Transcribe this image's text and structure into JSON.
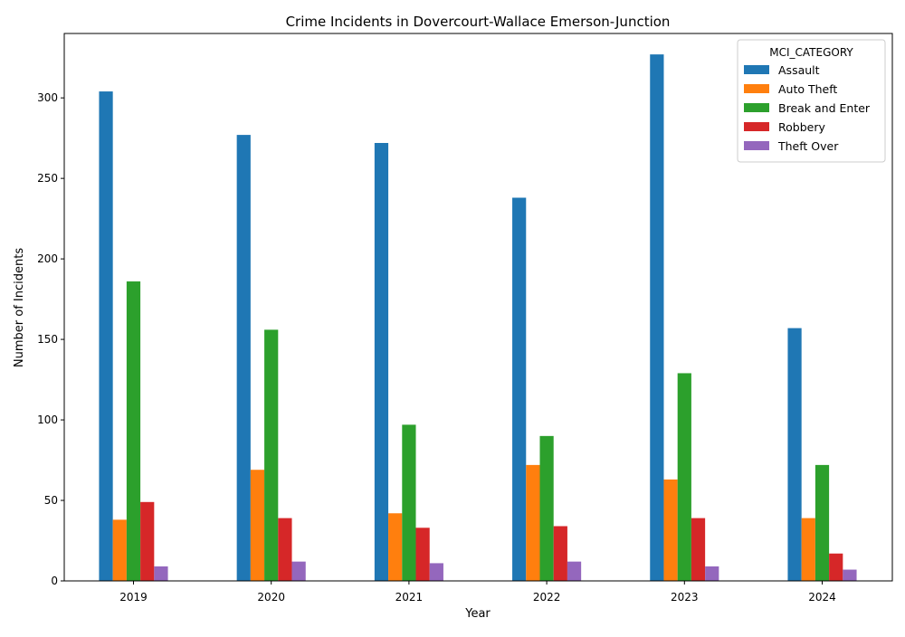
{
  "chart_data": {
    "type": "bar",
    "title": "Crime Incidents in Dovercourt-Wallace Emerson-Junction",
    "xlabel": "Year",
    "ylabel": "Number of Incidents",
    "categories": [
      "2019",
      "2020",
      "2021",
      "2022",
      "2023",
      "2024"
    ],
    "ylim": [
      0,
      340
    ],
    "yticks": [
      0,
      50,
      100,
      150,
      200,
      250,
      300
    ],
    "grid": false,
    "legend": {
      "title": "MCI_CATEGORY",
      "placement": "top-right"
    },
    "series": [
      {
        "name": "Assault",
        "color": "#1f77b4",
        "values": [
          304,
          277,
          272,
          238,
          327,
          157
        ]
      },
      {
        "name": "Auto Theft",
        "color": "#ff7f0e",
        "values": [
          38,
          69,
          42,
          72,
          63,
          39
        ]
      },
      {
        "name": "Break and Enter",
        "color": "#2ca02c",
        "values": [
          186,
          156,
          97,
          90,
          129,
          72
        ]
      },
      {
        "name": "Robbery",
        "color": "#d62728",
        "values": [
          49,
          39,
          33,
          34,
          39,
          17
        ]
      },
      {
        "name": "Theft Over",
        "color": "#9467bd",
        "values": [
          9,
          12,
          11,
          12,
          9,
          7
        ]
      }
    ]
  }
}
